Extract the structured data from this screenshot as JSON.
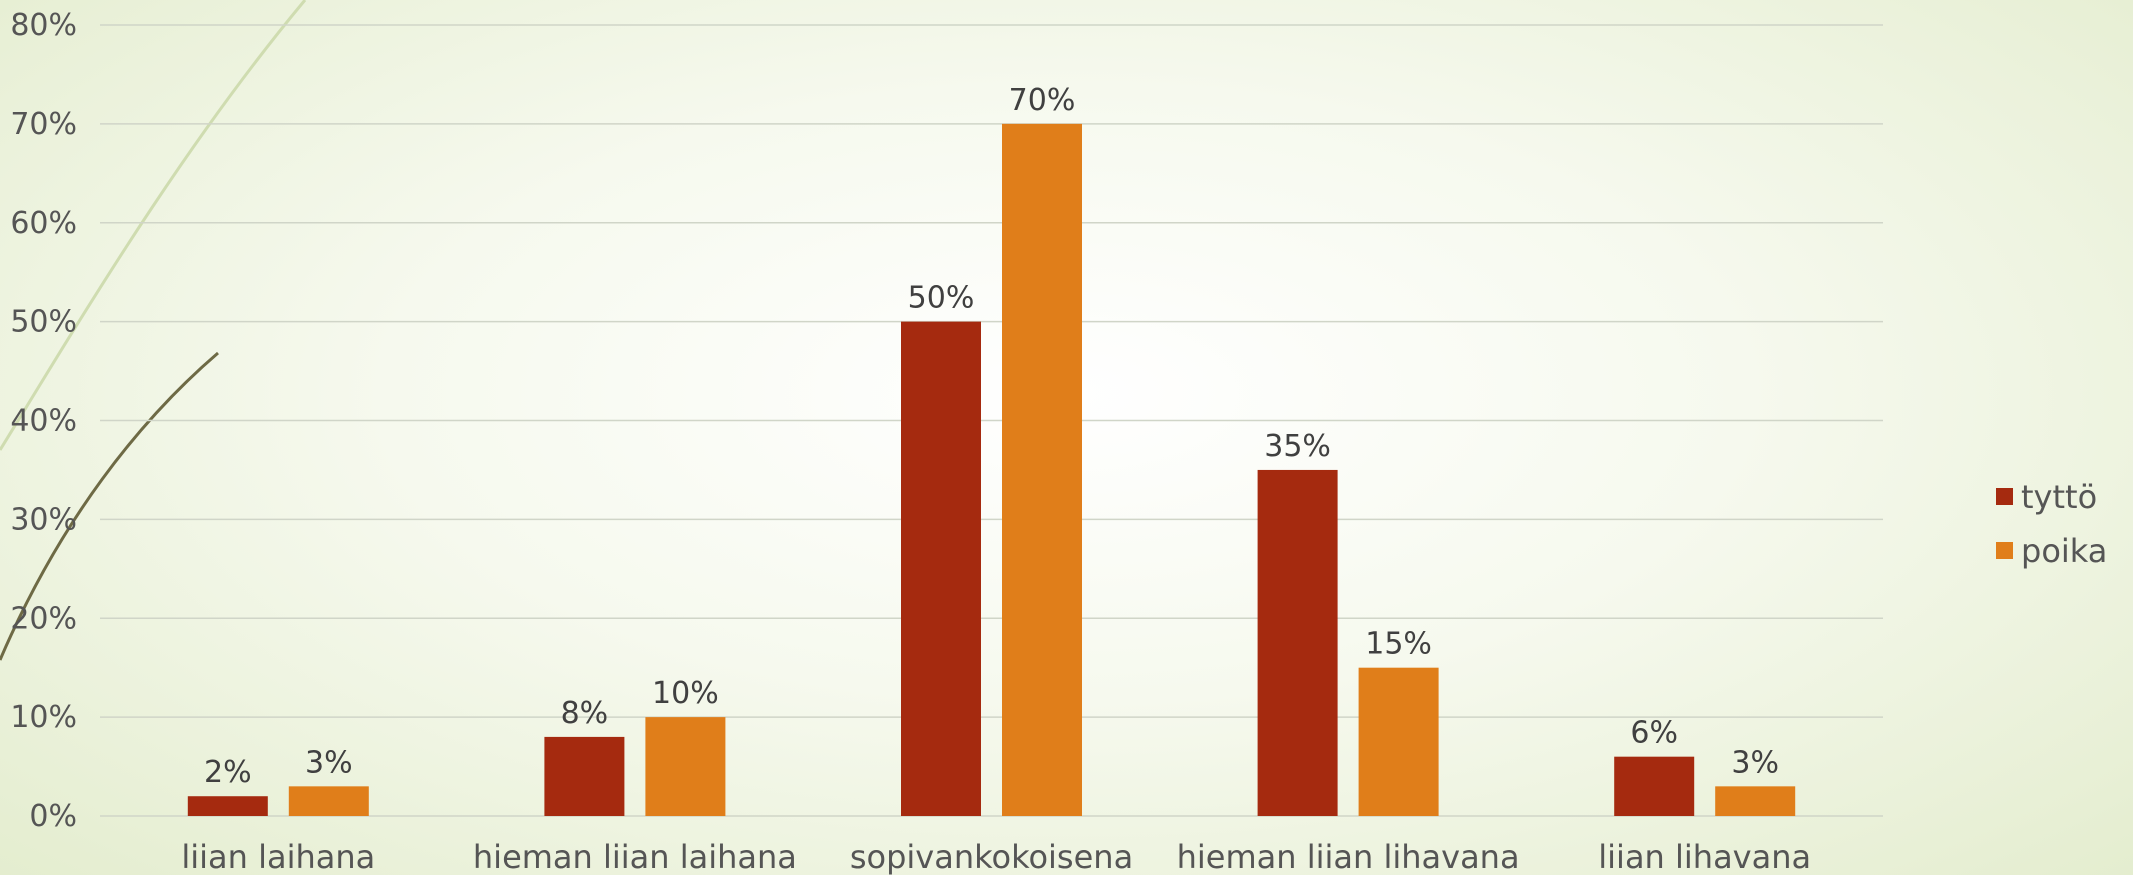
{
  "colors": {
    "tytto": "#A52A0F",
    "poika": "#E07E1A",
    "grid": "#D0D5C8",
    "text": "#555555",
    "decor_light": "#cfdcb0",
    "decor_dark": "#6e6a45"
  },
  "chart_data": {
    "type": "bar",
    "categories": [
      "liian laihana",
      "hieman liian laihana",
      "sopivankokoisena",
      "hieman liian lihavana",
      "liian lihavana"
    ],
    "series": [
      {
        "name": "tyttö",
        "values": [
          2,
          8,
          50,
          35,
          6
        ],
        "labels": [
          "2%",
          "8%",
          "50%",
          "35%",
          "6%"
        ]
      },
      {
        "name": "poika",
        "values": [
          3,
          10,
          70,
          15,
          3
        ],
        "labels": [
          "3%",
          "10%",
          "70%",
          "15%",
          "3%"
        ]
      }
    ],
    "y_ticks": [
      "0%",
      "10%",
      "20%",
      "30%",
      "40%",
      "50%",
      "60%",
      "70%",
      "80%"
    ],
    "ylim": [
      0,
      80
    ],
    "grid": true,
    "legend_position": "right"
  }
}
